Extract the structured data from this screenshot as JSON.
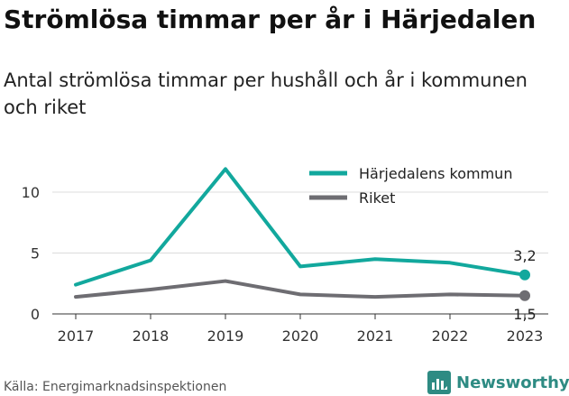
{
  "title": "Strömlösa timmar per år i Härjedalen",
  "subtitle": "Antal strömlösa timmar per hushåll och år i kommunen och riket",
  "source": "Källa: Energimarknadsinspektionen",
  "brand": {
    "name": "Newsworthy",
    "icon": "newsworthy-logo-icon",
    "color": "#2e8b83"
  },
  "chart_data": {
    "type": "line",
    "x": [
      2017,
      2018,
      2019,
      2020,
      2021,
      2022,
      2023
    ],
    "ylim": [
      0,
      12
    ],
    "yticks": [
      0,
      5,
      10
    ],
    "grid": true,
    "legend_position": "top-right",
    "series": [
      {
        "name": "Härjedalens kommun",
        "color": "#12a89d",
        "values": [
          2.4,
          4.4,
          11.9,
          3.9,
          4.5,
          4.2,
          3.2
        ],
        "end_label": "3,2"
      },
      {
        "name": "Riket",
        "color": "#6e6d72",
        "values": [
          1.4,
          2.0,
          2.7,
          1.6,
          1.4,
          1.6,
          1.5
        ],
        "end_label": "1,5"
      }
    ]
  }
}
